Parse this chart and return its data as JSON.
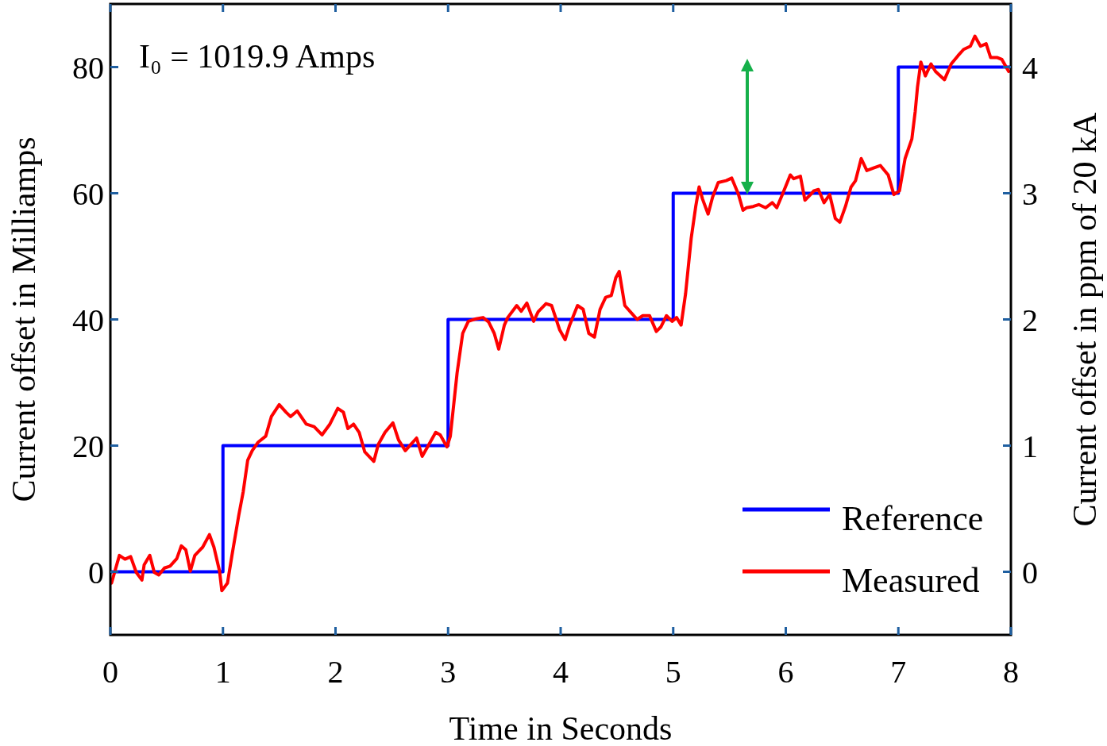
{
  "chart_data": {
    "type": "line",
    "xlabel": "Time in Seconds",
    "ylabel": "Current offset in Milliamps",
    "y2label": "Current offset in ppm of 20 kA",
    "annotations": [
      "I₀ = 1019.9 Amps"
    ],
    "xlim": [
      0,
      8
    ],
    "xticks": [
      0,
      1,
      2,
      3,
      4,
      5,
      6,
      7,
      8
    ],
    "ylim": [
      -10,
      90
    ],
    "yticks": [
      0,
      20,
      40,
      60,
      80
    ],
    "y2lim": [
      -0.5,
      4.5
    ],
    "y2ticks": [
      0,
      1,
      2,
      3,
      4
    ],
    "grid": false,
    "legend": "bottom right",
    "marker": "none",
    "line_style": "solid",
    "series": [
      {
        "name": "Reference",
        "type": "step",
        "color": "#0000ff",
        "x": [
          0,
          1,
          3,
          5,
          7,
          8
        ],
        "values": [
          0,
          20,
          40,
          60,
          80,
          80
        ]
      },
      {
        "name": "Measured",
        "color": "#ff0000",
        "x": [
          0.01,
          0.08,
          0.13,
          0.18,
          0.23,
          0.28,
          0.3,
          0.35,
          0.39,
          0.43,
          0.48,
          0.53,
          0.59,
          0.63,
          0.67,
          0.71,
          0.75,
          0.82,
          0.88,
          0.92,
          0.97,
          0.99,
          1.04,
          1.08,
          1.14,
          1.18,
          1.22,
          1.26,
          1.31,
          1.38,
          1.43,
          1.5,
          1.56,
          1.6,
          1.66,
          1.74,
          1.81,
          1.88,
          1.95,
          2.02,
          2.07,
          2.11,
          2.16,
          2.21,
          2.26,
          2.34,
          2.38,
          2.44,
          2.51,
          2.56,
          2.62,
          2.67,
          2.72,
          2.77,
          2.83,
          2.89,
          2.93,
          2.99,
          3.02,
          3.08,
          3.13,
          3.18,
          3.25,
          3.31,
          3.36,
          3.41,
          3.45,
          3.5,
          3.53,
          3.61,
          3.65,
          3.7,
          3.76,
          3.8,
          3.87,
          3.92,
          3.99,
          4.04,
          4.08,
          4.15,
          4.2,
          4.25,
          4.3,
          4.35,
          4.4,
          4.45,
          4.49,
          4.52,
          4.57,
          4.63,
          4.68,
          4.73,
          4.79,
          4.85,
          4.89,
          4.94,
          4.99,
          5.03,
          5.07,
          5.11,
          5.16,
          5.2,
          5.23,
          5.26,
          5.31,
          5.35,
          5.4,
          5.47,
          5.52,
          5.58,
          5.62,
          5.65,
          5.71,
          5.76,
          5.82,
          5.88,
          5.92,
          5.97,
          6.04,
          6.07,
          6.13,
          6.17,
          6.22,
          6.25,
          6.29,
          6.34,
          6.39,
          6.44,
          6.48,
          6.53,
          6.58,
          6.62,
          6.67,
          6.72,
          6.78,
          6.84,
          6.91,
          6.96,
          7.01,
          7.06,
          7.12,
          7.15,
          7.17,
          7.2,
          7.24,
          7.29,
          7.33,
          7.41,
          7.47,
          7.53,
          7.58,
          7.64,
          7.68,
          7.73,
          7.78,
          7.82,
          7.88,
          7.92,
          7.98
        ],
        "values": [
          -1.8,
          2.6,
          2,
          2.4,
          -0.1,
          -1.3,
          1.1,
          2.6,
          -0.1,
          -0.5,
          0.6,
          0.9,
          2.1,
          4.1,
          3.5,
          0.1,
          2.6,
          3.9,
          5.9,
          3.9,
          0.1,
          -3,
          -1.8,
          2.6,
          8.9,
          12.7,
          17.7,
          19.2,
          20.5,
          21.5,
          24.6,
          26.5,
          25.3,
          24.6,
          25.5,
          23.4,
          23,
          21.7,
          23.4,
          25.9,
          25.3,
          22.7,
          23.4,
          22.1,
          19,
          17.5,
          20.2,
          22.1,
          23.6,
          20.9,
          19.2,
          20.2,
          21.2,
          18.3,
          20.2,
          22.1,
          21.7,
          19.8,
          21.5,
          31.5,
          37.8,
          39.7,
          40.1,
          40.3,
          39.6,
          37.8,
          35.3,
          39.1,
          40.3,
          42.2,
          41.3,
          42.6,
          39.7,
          41.2,
          42.5,
          42.2,
          38.4,
          36.8,
          39.1,
          42.2,
          41.6,
          37.8,
          37.2,
          41.6,
          43.5,
          43.8,
          46.6,
          47.6,
          42.2,
          41,
          40,
          40.6,
          40.6,
          38.1,
          38.8,
          40.6,
          39.7,
          40.3,
          39.1,
          44.1,
          52.9,
          57.9,
          61,
          59.1,
          56.7,
          59.4,
          61.7,
          62,
          62.4,
          59.8,
          57.3,
          57.7,
          57.9,
          58.2,
          57.7,
          58.5,
          57.7,
          59.8,
          62.9,
          62.3,
          62.7,
          58.9,
          59.8,
          60.4,
          60.6,
          58.5,
          59.8,
          56,
          55.4,
          57.9,
          61,
          62,
          65.5,
          63.6,
          64,
          64.4,
          62.9,
          59.8,
          60.4,
          65.5,
          68.6,
          73,
          76.8,
          80.8,
          78.6,
          80.5,
          79.3,
          78,
          80.5,
          81.8,
          82.8,
          83.3,
          84.9,
          83.3,
          83.7,
          81.5,
          81.5,
          81.2,
          79.3
        ]
      }
    ]
  }
}
